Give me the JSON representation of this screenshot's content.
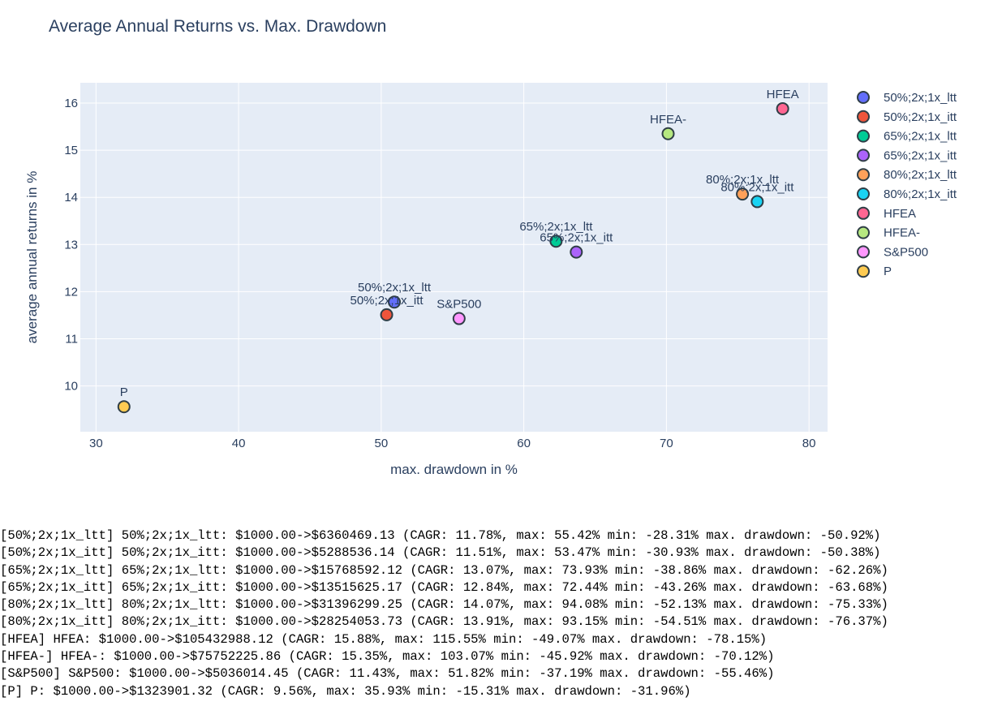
{
  "chart_data": {
    "type": "scatter",
    "title": "Average Annual Returns vs. Max. Drawdown",
    "xlabel": "max. drawdown in %",
    "ylabel": "average annual returns in %",
    "xlim": [
      28.9,
      81.3
    ],
    "ylim": [
      9.03,
      16.43
    ],
    "xticks": [
      30,
      40,
      50,
      60,
      70,
      80
    ],
    "yticks": [
      10,
      11,
      12,
      13,
      14,
      15,
      16
    ],
    "grid": true,
    "legend_position": "right",
    "series": [
      {
        "name": "50%;2x;1x_ltt",
        "x": 50.92,
        "y": 11.78,
        "color": "#636efa"
      },
      {
        "name": "50%;2x;1x_itt",
        "x": 50.38,
        "y": 11.51,
        "color": "#ef553b"
      },
      {
        "name": "65%;2x;1x_ltt",
        "x": 62.26,
        "y": 13.07,
        "color": "#00cc96"
      },
      {
        "name": "65%;2x;1x_itt",
        "x": 63.68,
        "y": 12.84,
        "color": "#ab63fa"
      },
      {
        "name": "80%;2x;1x_ltt",
        "x": 75.33,
        "y": 14.07,
        "color": "#ffa15a"
      },
      {
        "name": "80%;2x;1x_itt",
        "x": 76.37,
        "y": 13.91,
        "color": "#19d3f3"
      },
      {
        "name": "HFEA",
        "x": 78.15,
        "y": 15.88,
        "color": "#ff6692"
      },
      {
        "name": "HFEA-",
        "x": 70.12,
        "y": 15.35,
        "color": "#b6e880"
      },
      {
        "name": "S&P500",
        "x": 55.46,
        "y": 11.43,
        "color": "#ff97ff"
      },
      {
        "name": "P",
        "x": 31.96,
        "y": 9.56,
        "color": "#fecb52"
      }
    ]
  },
  "log_lines": [
    "[50%;2x;1x_ltt] 50%;2x;1x_ltt: $1000.00->$6360469.13 (CAGR: 11.78%, max: 55.42% min: -28.31% max. drawdown: -50.92%)",
    "[50%;2x;1x_itt] 50%;2x;1x_itt: $1000.00->$5288536.14 (CAGR: 11.51%, max: 53.47% min: -30.93% max. drawdown: -50.38%)",
    "[65%;2x;1x_ltt] 65%;2x;1x_ltt: $1000.00->$15768592.12 (CAGR: 13.07%, max: 73.93% min: -38.86% max. drawdown: -62.26%)",
    "[65%;2x;1x_itt] 65%;2x;1x_itt: $1000.00->$13515625.17 (CAGR: 12.84%, max: 72.44% min: -43.26% max. drawdown: -63.68%)",
    "[80%;2x;1x_ltt] 80%;2x;1x_ltt: $1000.00->$31396299.25 (CAGR: 14.07%, max: 94.08% min: -52.13% max. drawdown: -75.33%)",
    "[80%;2x;1x_itt] 80%;2x;1x_itt: $1000.00->$28254053.73 (CAGR: 13.91%, max: 93.15% min: -54.51% max. drawdown: -76.37%)",
    "[HFEA] HFEA: $1000.00->$105432988.12 (CAGR: 15.88%, max: 115.55% min: -49.07% max. drawdown: -78.15%)",
    "[HFEA-] HFEA-: $1000.00->$75752225.86 (CAGR: 15.35%, max: 103.07% min: -45.92% max. drawdown: -70.12%)",
    "[S&P500] S&P500: $1000.00->$5036014.45 (CAGR: 11.43%, max: 51.82% min: -37.19% max. drawdown: -55.46%)",
    "[P] P: $1000.00->$1323901.32 (CAGR: 9.56%, max: 35.93% min: -15.31% max. drawdown: -31.96%)"
  ]
}
